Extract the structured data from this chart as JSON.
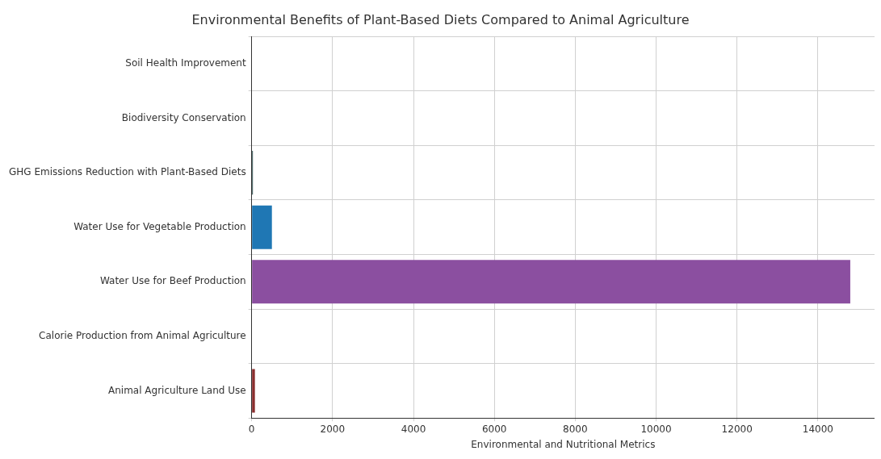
{
  "chart_data": {
    "type": "bar",
    "orientation": "horizontal",
    "title": "Environmental Benefits of Plant-Based Diets Compared to Animal Agriculture",
    "xlabel": "Environmental and Nutritional Metrics",
    "categories": [
      "Soil Health Improvement",
      "Biodiversity Conservation",
      "GHG Emissions Reduction with Plant-Based Diets",
      "Water Use for Vegetable Production",
      "Water Use for Beef Production",
      "Calorie Production from Animal Agriculture",
      "Animal Agriculture Land Use"
    ],
    "values": [
      0,
      0,
      30,
      500,
      14800,
      0,
      80
    ],
    "colors": [
      "#8c564b",
      "#e377c2",
      "#2f4f4f",
      "#1f77b4",
      "#8b4fa0",
      "#ff7f0e",
      "#8b2e2e"
    ],
    "xlim": [
      0,
      15400
    ],
    "xticks": [
      0,
      2000,
      4000,
      6000,
      8000,
      10000,
      12000,
      14000
    ],
    "grid": true,
    "legend": false
  }
}
